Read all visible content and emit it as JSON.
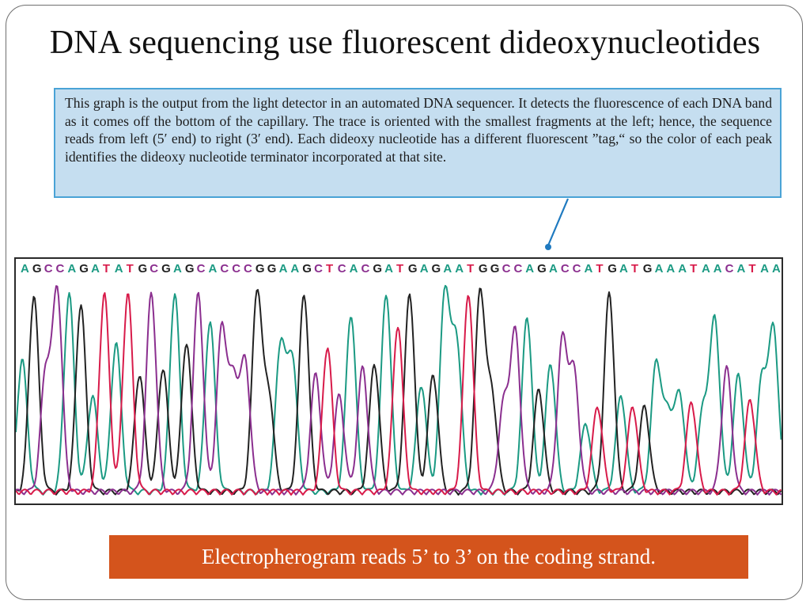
{
  "slide": {
    "title": "DNA sequencing use fluorescent dideoxynucleotides",
    "caption": "This graph is the output from the light detector in an automated DNA sequencer. It detects the fluorescence of each DNA band as it comes off the bottom of the capillary. The trace is oriented with the smallest fragments at the left; hence, the sequence reads from left (5′ end) to right (3′ end). Each dideoxy nucleotide has a different fluorescent ”tag,“ so the color of each peak identifies the dideoxy nucleotide terminator incorporated at that site.",
    "footer": "Electropherogram reads 5’ to 3’ on the coding strand."
  },
  "electropherogram": {
    "sequence": "AGCCAGATATGCGAGCACCCGGAAGCTCACGATGAGAATGGCCAGACCATGATGAAATAACATAA",
    "base_colors": {
      "A": "#1b9a83",
      "G": "#222222",
      "C": "#8b2f8f",
      "T": "#d81b4a"
    },
    "peak_heights": [
      0.62,
      0.92,
      0.55,
      0.93,
      0.93,
      0.88,
      0.45,
      0.93,
      0.7,
      0.93,
      0.55,
      0.93,
      0.58,
      0.93,
      0.7,
      0.93,
      0.8,
      0.76,
      0.5,
      0.6,
      0.93,
      0.45,
      0.68,
      0.62,
      0.93,
      0.55,
      0.68,
      0.45,
      0.83,
      0.58,
      0.6,
      0.93,
      0.78,
      0.93,
      0.5,
      0.55,
      0.93,
      0.7,
      0.93,
      0.93,
      0.45,
      0.4,
      0.74,
      0.82,
      0.48,
      0.6,
      0.7,
      0.55,
      0.32,
      0.4,
      0.93,
      0.45,
      0.4,
      0.4,
      0.6,
      0.35,
      0.45,
      0.42,
      0.38,
      0.8,
      0.58,
      0.55,
      0.43,
      0.52,
      0.75
    ]
  },
  "colors": {
    "caption_bg": "#c5def0",
    "caption_border": "#4aa3d6",
    "footer_bg": "#d4541c",
    "pointer": "#1f7ac0"
  }
}
